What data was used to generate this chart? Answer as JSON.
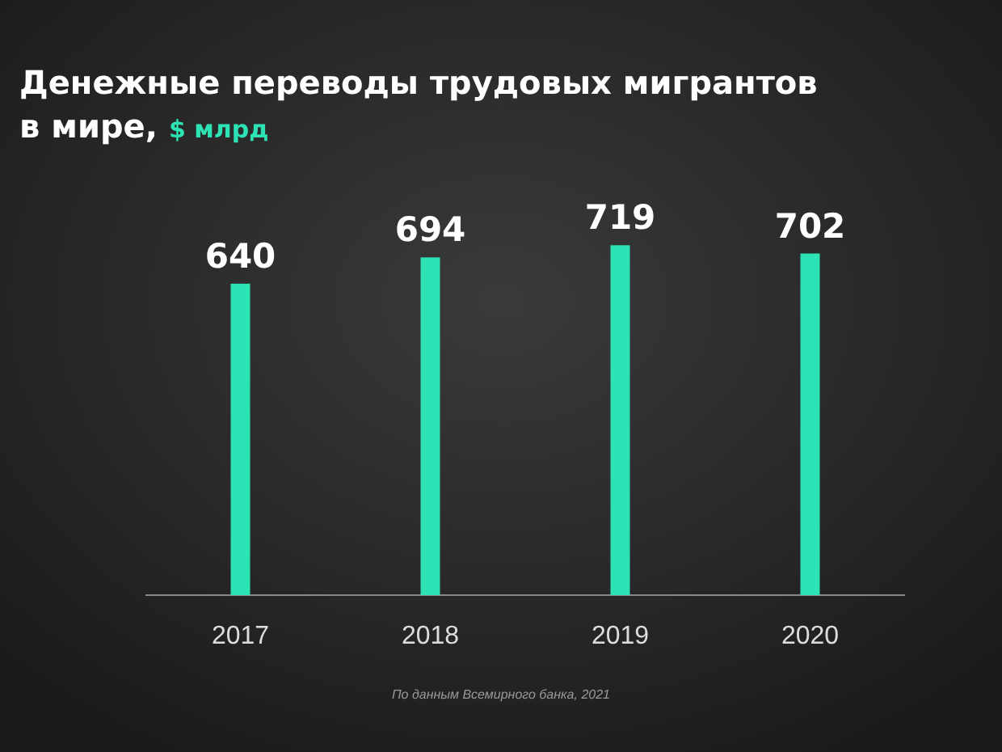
{
  "chart_data": {
    "type": "bar",
    "title": "Денежные переводы трудовых мигрантов в мире,",
    "subtitle": "$ млрд",
    "categories": [
      "2017",
      "2018",
      "2019",
      "2020"
    ],
    "values": [
      640,
      694,
      719,
      702
    ],
    "color": "#2de3b5",
    "data_labels": true,
    "annotations": [
      "По данным Всемирного банка, 2021"
    ]
  }
}
